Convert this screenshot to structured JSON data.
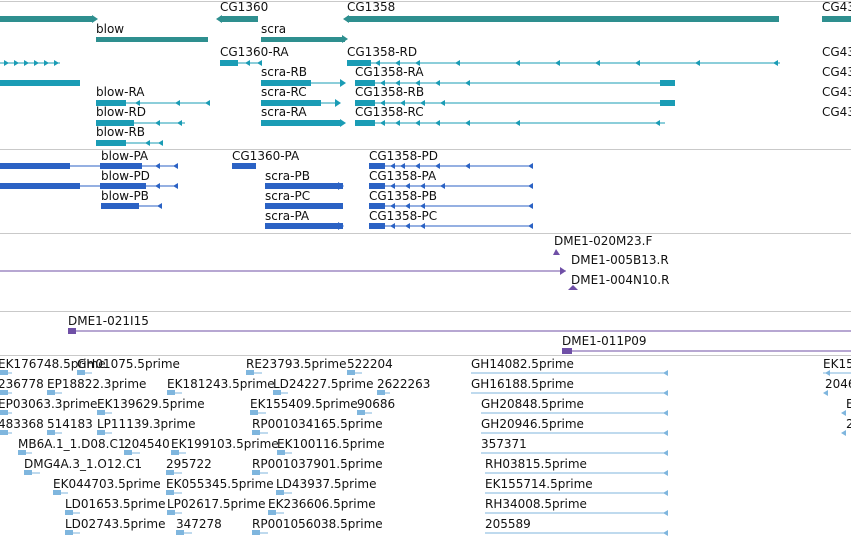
{
  "colors": {
    "gene": "#2e8f8f",
    "transcript": "#1a9cb5",
    "protein": "#2b62c4",
    "clone": "#6f4fa6",
    "est": "#7fb6de",
    "separator": "#c9c9c9"
  },
  "tracks": {
    "genes": {
      "labels": [
        {
          "id": "cg1360",
          "text": "CG1360"
        },
        {
          "id": "cg1358",
          "text": "CG1358"
        },
        {
          "id": "cg43a",
          "text": "CG43"
        },
        {
          "id": "blow",
          "text": "blow"
        },
        {
          "id": "scra",
          "text": "scra"
        }
      ]
    },
    "transcripts": {
      "labels": [
        {
          "id": "cg1360-ra",
          "text": "CG1360-RA"
        },
        {
          "id": "cg1358-rd",
          "text": "CG1358-RD"
        },
        {
          "id": "cg43b",
          "text": "CG43"
        },
        {
          "id": "scra-rb",
          "text": "scra-RB"
        },
        {
          "id": "cg1358-ra",
          "text": "CG1358-RA"
        },
        {
          "id": "cg43c",
          "text": "CG43"
        },
        {
          "id": "blow-ra",
          "text": "blow-RA"
        },
        {
          "id": "scra-rc",
          "text": "scra-RC"
        },
        {
          "id": "cg1358-rb",
          "text": "CG1358-RB"
        },
        {
          "id": "cg43d",
          "text": "CG43"
        },
        {
          "id": "blow-rd",
          "text": "blow-RD"
        },
        {
          "id": "scra-ra",
          "text": "scra-RA"
        },
        {
          "id": "cg1358-rc",
          "text": "CG1358-RC"
        },
        {
          "id": "cg43e",
          "text": "CG43"
        },
        {
          "id": "blow-rb",
          "text": "blow-RB"
        }
      ]
    },
    "proteins": {
      "labels": [
        {
          "id": "blow-pa",
          "text": "blow-PA"
        },
        {
          "id": "cg1360-pa",
          "text": "CG1360-PA"
        },
        {
          "id": "cg1358-pd",
          "text": "CG1358-PD"
        },
        {
          "id": "blow-pd",
          "text": "blow-PD"
        },
        {
          "id": "scra-pb",
          "text": "scra-PB"
        },
        {
          "id": "cg1358-pa",
          "text": "CG1358-PA"
        },
        {
          "id": "blow-pb",
          "text": "blow-PB"
        },
        {
          "id": "scra-pc",
          "text": "scra-PC"
        },
        {
          "id": "cg1358-pb",
          "text": "CG1358-PB"
        },
        {
          "id": "scra-pa",
          "text": "scra-PA"
        },
        {
          "id": "cg1358-pc",
          "text": "CG1358-PC"
        }
      ]
    },
    "clones1": {
      "labels": [
        {
          "id": "dme1-020m23",
          "text": "DME1-020M23.F"
        },
        {
          "id": "dme1-005b13",
          "text": "DME1-005B13.R"
        },
        {
          "id": "dme1-004n10",
          "text": "DME1-004N10.R"
        }
      ]
    },
    "clones2": {
      "labels": [
        {
          "id": "dme1-021i15",
          "text": "DME1-021I15"
        },
        {
          "id": "dme1-011p09",
          "text": "DME1-011P09"
        }
      ]
    },
    "ests": {
      "labels": [
        {
          "id": "e1",
          "text": "EK176748.5prime"
        },
        {
          "id": "e2",
          "text": "GH01075.5prime"
        },
        {
          "id": "e3",
          "text": "RE23793.5prime"
        },
        {
          "id": "e4",
          "text": "522204"
        },
        {
          "id": "e5",
          "text": "GH14082.5prime"
        },
        {
          "id": "e6",
          "text": "EK15"
        },
        {
          "id": "e7",
          "text": "236778"
        },
        {
          "id": "e8",
          "text": "EP18822.3prime"
        },
        {
          "id": "e9",
          "text": "EK181243.5prime"
        },
        {
          "id": "e10",
          "text": "LD24227.5prime"
        },
        {
          "id": "e11",
          "text": "2622263"
        },
        {
          "id": "e12",
          "text": "GH16188.5prime"
        },
        {
          "id": "e13",
          "text": "2046"
        },
        {
          "id": "e14",
          "text": "EP03063.3prime"
        },
        {
          "id": "e15",
          "text": "EK139629.5prime"
        },
        {
          "id": "e16",
          "text": "EK155409.5prime"
        },
        {
          "id": "e17",
          "text": "90686"
        },
        {
          "id": "e18",
          "text": "GH20848.5prime"
        },
        {
          "id": "e19",
          "text": "E"
        },
        {
          "id": "e20",
          "text": "483368"
        },
        {
          "id": "e21",
          "text": "514183"
        },
        {
          "id": "e22",
          "text": "LP11139.3prime"
        },
        {
          "id": "e23",
          "text": "RP001034165.5prime"
        },
        {
          "id": "e24",
          "text": "GH20946.5prime"
        },
        {
          "id": "e25",
          "text": "2"
        },
        {
          "id": "e26",
          "text": "MB6A.1_1.D08.C1"
        },
        {
          "id": "e27",
          "text": "204540"
        },
        {
          "id": "e28",
          "text": "EK199103.5prime"
        },
        {
          "id": "e29",
          "text": "EK100116.5prime"
        },
        {
          "id": "e30",
          "text": "357371"
        },
        {
          "id": "e31",
          "text": "DMG4A.3_1.O12.C1"
        },
        {
          "id": "e32",
          "text": "295722"
        },
        {
          "id": "e33",
          "text": "RP001037901.5prime"
        },
        {
          "id": "e34",
          "text": "RH03815.5prime"
        },
        {
          "id": "e35",
          "text": "EK044703.5prime"
        },
        {
          "id": "e36",
          "text": "EK055345.5prime"
        },
        {
          "id": "e37",
          "text": "LD43937.5prime"
        },
        {
          "id": "e38",
          "text": "EK155714.5prime"
        },
        {
          "id": "e39",
          "text": "LD01653.5prime"
        },
        {
          "id": "e40",
          "text": "LP02617.5prime"
        },
        {
          "id": "e41",
          "text": "EK236606.5prime"
        },
        {
          "id": "e42",
          "text": "RH34008.5prime"
        },
        {
          "id": "e43",
          "text": "LD02743.5prime"
        },
        {
          "id": "e44",
          "text": "347278"
        },
        {
          "id": "e45",
          "text": "RP001056038.5prime"
        },
        {
          "id": "e46",
          "text": "205589"
        }
      ]
    }
  }
}
